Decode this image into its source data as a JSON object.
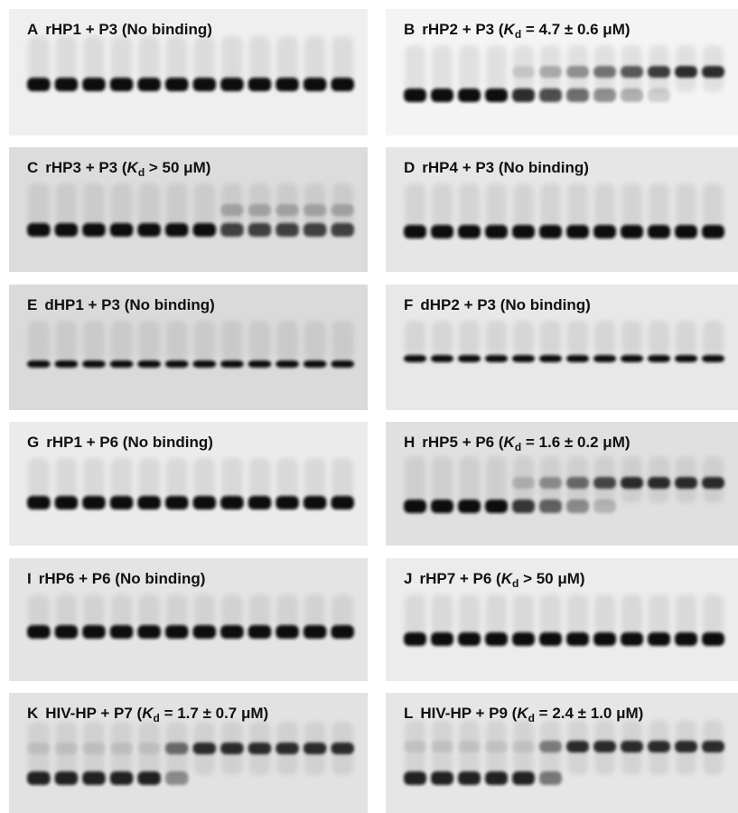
{
  "panels": [
    {
      "letter": "A",
      "text": "rHP1 + P3 (No binding)"
    },
    {
      "letter": "B",
      "text": "rHP2 + P3 (",
      "k": "K",
      "sub": "d",
      "rest": " = 4.7 ± 0.6 μM)"
    },
    {
      "letter": "C",
      "text": "rHP3 + P3 (",
      "k": "K",
      "sub": "d",
      "rest": " > 50 μM)"
    },
    {
      "letter": "D",
      "text": "rHP4 + P3 (No binding)"
    },
    {
      "letter": "E",
      "text": "dHP1 + P3 (No binding)"
    },
    {
      "letter": "F",
      "text": "dHP2 + P3 (No binding)"
    },
    {
      "letter": "G",
      "text": "rHP1 + P6 (No binding)"
    },
    {
      "letter": "H",
      "text": "rHP5 + P6 (",
      "k": "K",
      "sub": "d",
      "rest": " = 1.6 ± 0.2 μM)"
    },
    {
      "letter": "I",
      "text": "rHP6 + P6 (No binding)"
    },
    {
      "letter": "J",
      "text": "rHP7 + P6 (",
      "k": "K",
      "sub": "d",
      "rest": " > 50 μM)"
    },
    {
      "letter": "K",
      "text": "HIV-HP + P7 (",
      "k": "K",
      "sub": "d",
      "rest": " = 1.7 ± 0.7 μM)"
    },
    {
      "letter": "L",
      "text": "HIV-HP + P9 (",
      "k": "K",
      "sub": "d",
      "rest": " = 2.4 ± 1.0 μM)"
    }
  ]
}
